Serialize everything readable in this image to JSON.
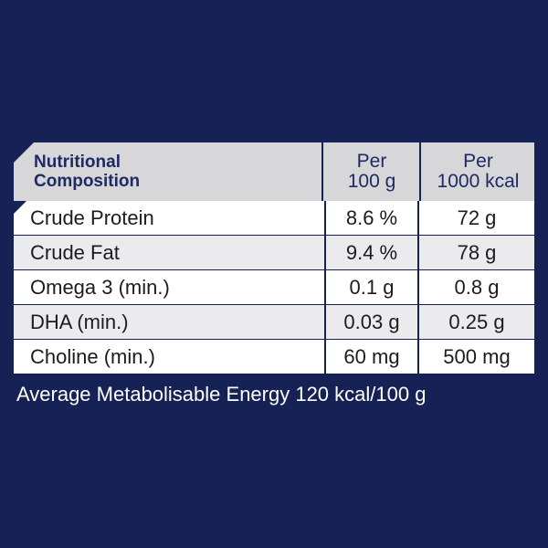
{
  "table": {
    "header": {
      "label_line1": "Nutritional",
      "label_line2": "Composition",
      "col1_line1": "Per",
      "col1_line2": "100 g",
      "col2_line1": "Per",
      "col2_line2": "1000 kcal"
    },
    "rows": [
      {
        "name": "Crude Protein",
        "per100g": "8.6 %",
        "per1000kcal": "72 g"
      },
      {
        "name": "Crude Fat",
        "per100g": "9.4 %",
        "per1000kcal": "78 g"
      },
      {
        "name": "Omega 3 (min.)",
        "per100g": "0.1 g",
        "per1000kcal": "0.8 g"
      },
      {
        "name": "DHA (min.)",
        "per100g": "0.03 g",
        "per1000kcal": "0.25 g"
      },
      {
        "name": "Choline (min.)",
        "per100g": "60 mg",
        "per1000kcal": "500 mg"
      }
    ]
  },
  "footer": "Average Metabolisable Energy 120 kcal/100 g",
  "colors": {
    "background": "#162255",
    "header": "#d7d7da",
    "row_alt": "#ebebed"
  }
}
